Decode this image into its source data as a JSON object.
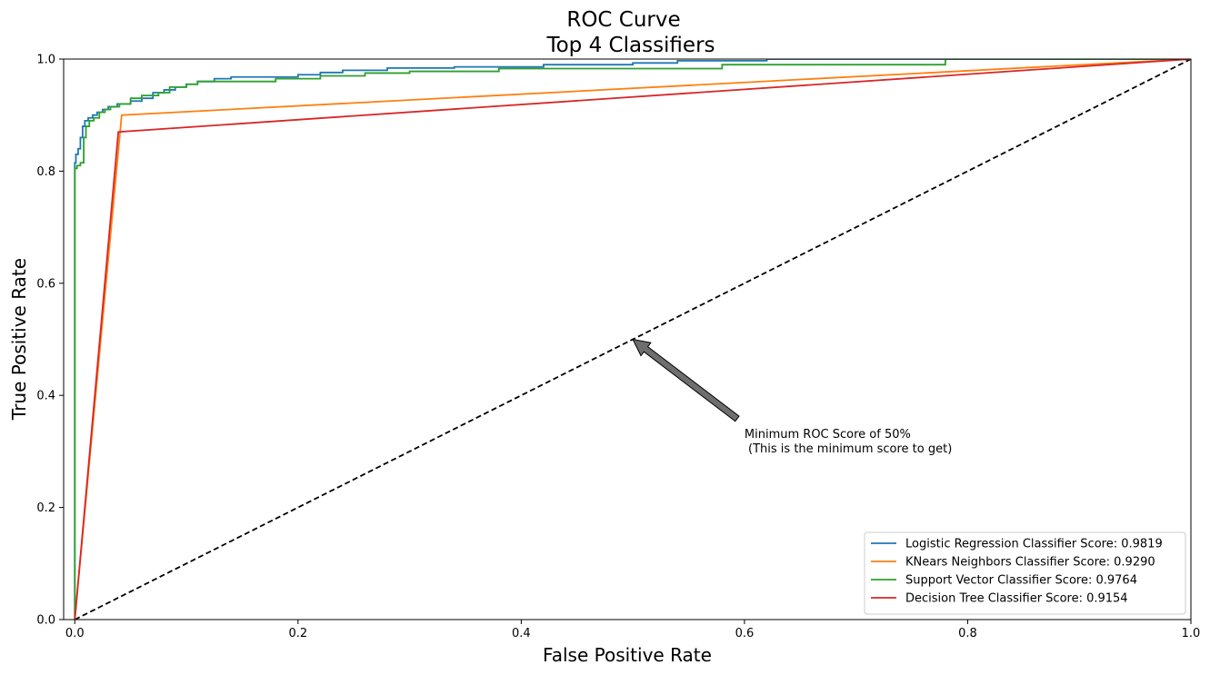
{
  "chart_data": {
    "type": "line",
    "title": [
      "ROC Curve",
      "Top 4 Classifiers"
    ],
    "xlabel": "False Positive Rate",
    "ylabel": "True Positive Rate",
    "xlim": [
      -0.01,
      1.0
    ],
    "ylim": [
      0.0,
      1.0
    ],
    "xticks": [
      "0.0",
      "0.2",
      "0.4",
      "0.6",
      "0.8",
      "1.0"
    ],
    "yticks": [
      "0.0",
      "0.2",
      "0.4",
      "0.6",
      "0.8",
      "1.0"
    ],
    "grid": false,
    "legend_position": "lower-right",
    "series": [
      {
        "name": "Logistic Regression Classifier Score: 0.9819",
        "color": "#1f77b4",
        "step": true,
        "x": [
          0.0,
          0.0,
          0.001,
          0.001,
          0.003,
          0.003,
          0.005,
          0.005,
          0.007,
          0.007,
          0.009,
          0.009,
          0.012,
          0.012,
          0.016,
          0.016,
          0.02,
          0.02,
          0.025,
          0.025,
          0.03,
          0.03,
          0.038,
          0.038,
          0.05,
          0.05,
          0.06,
          0.06,
          0.07,
          0.07,
          0.08,
          0.08,
          0.09,
          0.09,
          0.1,
          0.1,
          0.11,
          0.11,
          0.125,
          0.125,
          0.14,
          0.14,
          0.2,
          0.2,
          0.22,
          0.22,
          0.24,
          0.24,
          0.28,
          0.28,
          0.34,
          0.34,
          0.42,
          0.42,
          0.5,
          0.5,
          0.54,
          0.54,
          0.62,
          0.62,
          0.85,
          0.85,
          1.0
        ],
        "y": [
          0.0,
          0.815,
          0.815,
          0.83,
          0.83,
          0.84,
          0.84,
          0.86,
          0.86,
          0.88,
          0.88,
          0.89,
          0.89,
          0.895,
          0.895,
          0.9,
          0.9,
          0.905,
          0.905,
          0.91,
          0.91,
          0.915,
          0.915,
          0.92,
          0.92,
          0.925,
          0.925,
          0.93,
          0.93,
          0.94,
          0.94,
          0.945,
          0.945,
          0.95,
          0.95,
          0.955,
          0.955,
          0.96,
          0.96,
          0.965,
          0.965,
          0.968,
          0.968,
          0.972,
          0.972,
          0.976,
          0.976,
          0.98,
          0.98,
          0.984,
          0.984,
          0.986,
          0.986,
          0.99,
          0.99,
          0.993,
          0.993,
          0.997,
          0.997,
          1.0,
          1.0,
          1.0,
          1.0
        ]
      },
      {
        "name": "KNears Neighbors Classifier Score: 0.9290",
        "color": "#ff7f0e",
        "step": false,
        "x": [
          0.0,
          0.042,
          1.0
        ],
        "y": [
          0.0,
          0.9,
          1.0
        ]
      },
      {
        "name": "Support Vector Classifier Score: 0.9764",
        "color": "#2ca02c",
        "step": true,
        "x": [
          0.0,
          0.0,
          0.002,
          0.002,
          0.005,
          0.005,
          0.008,
          0.008,
          0.01,
          0.01,
          0.013,
          0.013,
          0.017,
          0.017,
          0.022,
          0.022,
          0.027,
          0.027,
          0.032,
          0.032,
          0.04,
          0.04,
          0.05,
          0.05,
          0.06,
          0.06,
          0.075,
          0.075,
          0.085,
          0.085,
          0.1,
          0.1,
          0.11,
          0.11,
          0.13,
          0.13,
          0.18,
          0.18,
          0.22,
          0.22,
          0.26,
          0.26,
          0.3,
          0.3,
          0.38,
          0.38,
          0.45,
          0.45,
          0.58,
          0.58,
          0.6,
          0.6,
          0.78,
          0.78,
          1.0
        ],
        "y": [
          0.0,
          0.805,
          0.805,
          0.81,
          0.81,
          0.815,
          0.815,
          0.86,
          0.86,
          0.88,
          0.88,
          0.89,
          0.89,
          0.895,
          0.895,
          0.905,
          0.905,
          0.91,
          0.91,
          0.915,
          0.915,
          0.92,
          0.92,
          0.93,
          0.93,
          0.935,
          0.935,
          0.94,
          0.94,
          0.95,
          0.95,
          0.955,
          0.955,
          0.96,
          0.96,
          0.96,
          0.96,
          0.965,
          0.965,
          0.97,
          0.97,
          0.975,
          0.975,
          0.978,
          0.978,
          0.983,
          0.983,
          0.983,
          0.983,
          0.99,
          0.99,
          0.99,
          0.99,
          1.0,
          1.0
        ]
      },
      {
        "name": "Decision Tree Classifier Score: 0.9154",
        "color": "#d62728",
        "step": false,
        "x": [
          0.0,
          0.039,
          1.0
        ],
        "y": [
          0.0,
          0.87,
          1.0
        ]
      }
    ],
    "reference_line": {
      "x": [
        0.0,
        1.0
      ],
      "y": [
        0.0,
        1.0
      ],
      "color": "#000000",
      "style": "dashed"
    },
    "annotation": {
      "text_lines": [
        "Minimum ROC Score of 50%",
        " (This is the minimum score to get)"
      ],
      "text_x": 0.6,
      "text_y": 0.3,
      "arrow_to_x": 0.5,
      "arrow_to_y": 0.5,
      "arrow_color": "#6e6e6e"
    }
  }
}
